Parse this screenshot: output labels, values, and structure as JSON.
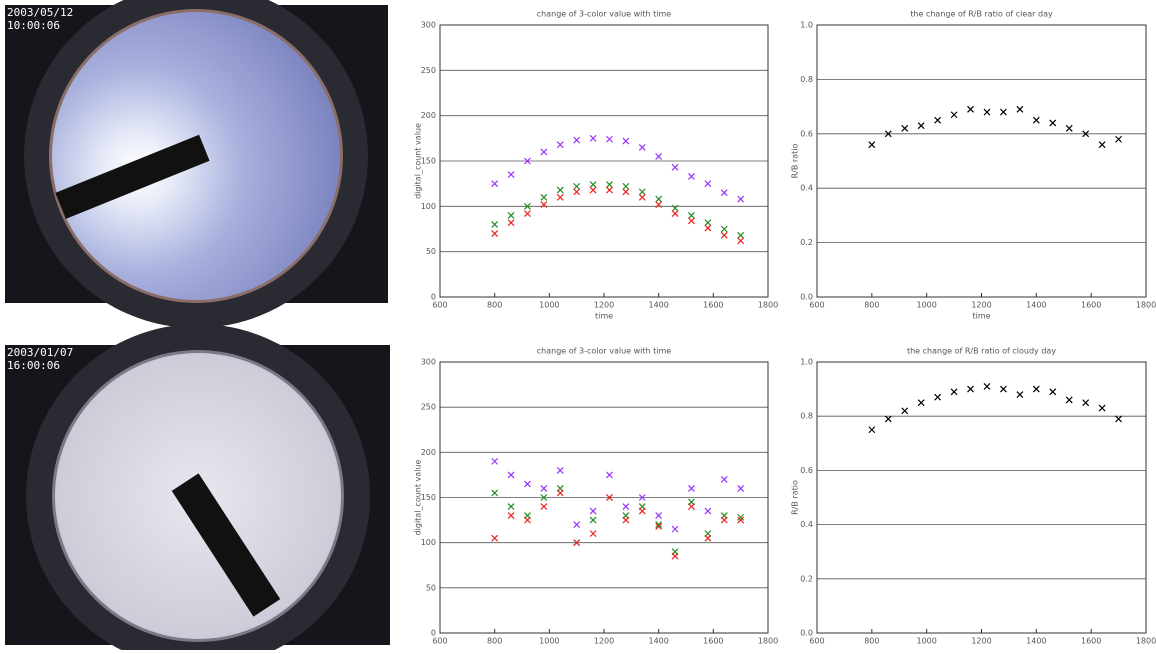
{
  "photos": [
    {
      "timestamp_date": "2003/05/12",
      "timestamp_time": "10:00:06"
    },
    {
      "timestamp_date": "2003/01/07",
      "timestamp_time": "16:00:06"
    }
  ],
  "chart_data": [
    {
      "type": "scatter",
      "title": "change of 3-color value with time",
      "x_label": "time",
      "y_label": "digital_count value",
      "x": [
        800,
        860,
        920,
        980,
        1040,
        1100,
        1160,
        1220,
        1280,
        1340,
        1400,
        1460,
        1520,
        1580,
        1640,
        1700
      ],
      "series": [
        {
          "color": "#9933ff",
          "values": [
            125,
            135,
            150,
            160,
            168,
            173,
            175,
            174,
            172,
            165,
            155,
            143,
            133,
            125,
            115,
            108
          ]
        },
        {
          "color": "#228b22",
          "values": [
            80,
            90,
            100,
            110,
            118,
            122,
            124,
            124,
            122,
            116,
            108,
            98,
            90,
            82,
            75,
            68
          ]
        },
        {
          "color": "#ee2222",
          "values": [
            70,
            82,
            92,
            102,
            110,
            116,
            118,
            118,
            116,
            110,
            102,
            92,
            84,
            76,
            68,
            62
          ]
        }
      ],
      "xlim": [
        600,
        1800
      ],
      "xticks": [
        600,
        800,
        1000,
        1200,
        1400,
        1600,
        1800
      ],
      "ylim": [
        0,
        300
      ],
      "yticks": [
        0,
        50,
        100,
        150,
        200,
        250,
        300
      ],
      "grid": true
    },
    {
      "type": "scatter",
      "title": "the change of R/B ratio of clear day",
      "x_label": "time",
      "y_label": "R/B ratio",
      "x": [
        800,
        860,
        920,
        980,
        1040,
        1100,
        1160,
        1220,
        1280,
        1340,
        1400,
        1460,
        1520,
        1580,
        1640,
        1700
      ],
      "series": [
        {
          "color": "#000000",
          "values": [
            0.56,
            0.6,
            0.62,
            0.63,
            0.65,
            0.67,
            0.69,
            0.68,
            0.68,
            0.69,
            0.65,
            0.64,
            0.62,
            0.6,
            0.56,
            0.58
          ]
        }
      ],
      "xlim": [
        600,
        1800
      ],
      "xticks": [
        600,
        800,
        1000,
        1200,
        1400,
        1600,
        1800
      ],
      "ylim": [
        0,
        1
      ],
      "yticks": [
        {
          "value": 0,
          "label": "0.0"
        },
        0.2,
        0.4,
        0.6,
        0.8,
        {
          "value": 1,
          "label": "1.0"
        }
      ],
      "grid": true
    },
    {
      "type": "scatter",
      "title": "change of 3-color value with time",
      "y_label": "digital_count value",
      "x": [
        800,
        860,
        920,
        980,
        1040,
        1100,
        1160,
        1220,
        1280,
        1340,
        1400,
        1460,
        1520,
        1580,
        1640,
        1700
      ],
      "series": [
        {
          "color": "#9933ff",
          "values": [
            190,
            175,
            165,
            160,
            180,
            120,
            135,
            175,
            140,
            150,
            130,
            115,
            160,
            135,
            170,
            160
          ]
        },
        {
          "color": "#228b22",
          "values": [
            155,
            140,
            130,
            150,
            160,
            100,
            125,
            150,
            130,
            140,
            120,
            90,
            145,
            110,
            130,
            128
          ]
        },
        {
          "color": "#ee2222",
          "values": [
            105,
            130,
            125,
            140,
            155,
            100,
            110,
            150,
            125,
            135,
            118,
            85,
            140,
            105,
            125,
            125
          ]
        }
      ],
      "xlim": [
        600,
        1800
      ],
      "xticks": [
        600,
        800,
        1000,
        1200,
        1400,
        1600,
        1800
      ],
      "ylim": [
        0,
        300
      ],
      "yticks": [
        0,
        50,
        100,
        150,
        200,
        250,
        300
      ],
      "grid": true
    },
    {
      "type": "scatter",
      "title": "the change of R/B ratio of cloudy day",
      "y_label": "R/B ratio",
      "x": [
        800,
        860,
        920,
        980,
        1040,
        1100,
        1160,
        1220,
        1280,
        1340,
        1400,
        1460,
        1520,
        1580,
        1640,
        1700
      ],
      "series": [
        {
          "color": "#000000",
          "values": [
            0.75,
            0.79,
            0.82,
            0.85,
            0.87,
            0.89,
            0.9,
            0.91,
            0.9,
            0.88,
            0.9,
            0.89,
            0.86,
            0.85,
            0.83,
            0.79
          ]
        }
      ],
      "xlim": [
        600,
        1800
      ],
      "xticks": [
        600,
        800,
        1000,
        1200,
        1400,
        1600,
        1800
      ],
      "ylim": [
        0,
        1
      ],
      "yticks": [
        {
          "value": 0,
          "label": "0.0"
        },
        0.2,
        0.4,
        0.6,
        0.8,
        {
          "value": 1,
          "label": "1.0"
        }
      ],
      "grid": true
    }
  ]
}
